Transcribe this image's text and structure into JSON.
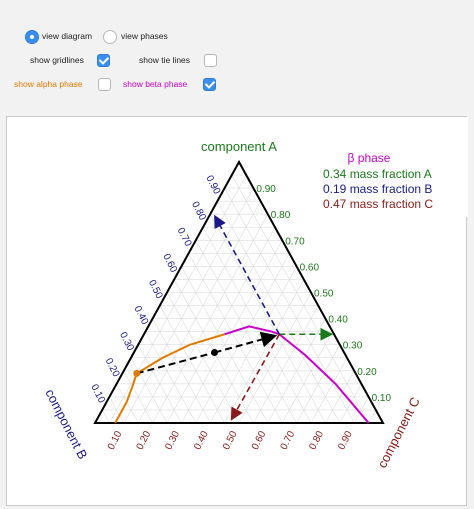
{
  "controls": {
    "view_diagram": {
      "label": "view diagram",
      "selected": true
    },
    "view_phases": {
      "label": "view phases",
      "selected": false
    },
    "show_gridlines": {
      "label": "show gridlines",
      "checked": true
    },
    "show_tie_lines": {
      "label": "show tie lines",
      "checked": false
    },
    "show_alpha_phase": {
      "label": "show alpha phase",
      "checked": false,
      "color": "#e07b00"
    },
    "show_beta_phase": {
      "label": "show beta phase",
      "checked": true,
      "color": "#cc00cc"
    }
  },
  "diagram": {
    "labels": {
      "top": "component A",
      "left": "component B",
      "right": "component C"
    },
    "colors": {
      "A": "#1a7a1a",
      "B": "#1a1a8a",
      "C": "#8a1a1a",
      "alpha": "#e07b00",
      "beta": "#cc00cc",
      "tie": "#000000"
    },
    "left_ticks": [
      "0.10",
      "0.20",
      "0.30",
      "0.40",
      "0.50",
      "0.60",
      "0.70",
      "0.80",
      "0.90"
    ],
    "right_ticks": [
      "0.90",
      "0.80",
      "0.70",
      "0.60",
      "0.50",
      "0.40",
      "0.30",
      "0.20",
      "0.10"
    ],
    "bottom_ticks": [
      "0.10",
      "0.20",
      "0.30",
      "0.40",
      "0.50",
      "0.60",
      "0.70",
      "0.80",
      "0.90"
    ],
    "beta_point": {
      "A": 0.34,
      "B": 0.19,
      "C": 0.47
    },
    "alpha_point": {
      "A": 0.19,
      "B": 0.76,
      "C": 0.05
    },
    "mid_point": {
      "A": 0.27,
      "B": 0.45,
      "C": 0.28
    }
  },
  "legend": {
    "title": "β phase",
    "lines": [
      {
        "text": "0.34 mass fraction A",
        "color": "#1a7a1a"
      },
      {
        "text": "0.19 mass fraction B",
        "color": "#1a1a8a"
      },
      {
        "text": "0.47 mass fraction C",
        "color": "#8a1a1a"
      }
    ]
  }
}
